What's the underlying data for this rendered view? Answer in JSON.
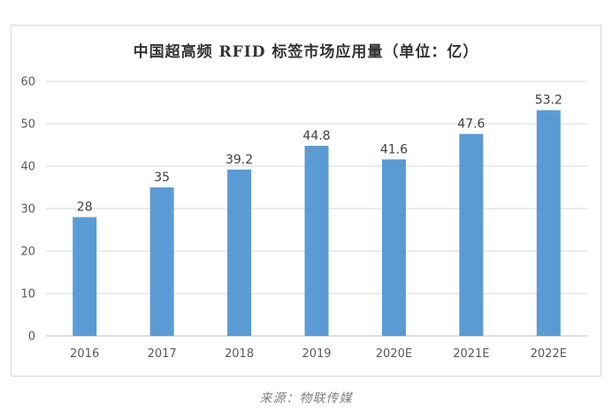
{
  "chart_data": {
    "type": "bar",
    "title": "中国超高频 RFID 标签市场应用量（单位：亿）",
    "xlabel": "",
    "ylabel": "",
    "categories": [
      "2016",
      "2017",
      "2018",
      "2019",
      "2020E",
      "2021E",
      "2022E"
    ],
    "values": [
      28,
      35,
      39.2,
      44.8,
      41.6,
      47.6,
      53.2
    ],
    "ylim": [
      0,
      60
    ],
    "yticks": [
      0,
      10,
      20,
      30,
      40,
      50,
      60
    ],
    "grid": true,
    "legend": "none",
    "bar_color": "#5b9bd5"
  },
  "source": "来源：物联传媒"
}
